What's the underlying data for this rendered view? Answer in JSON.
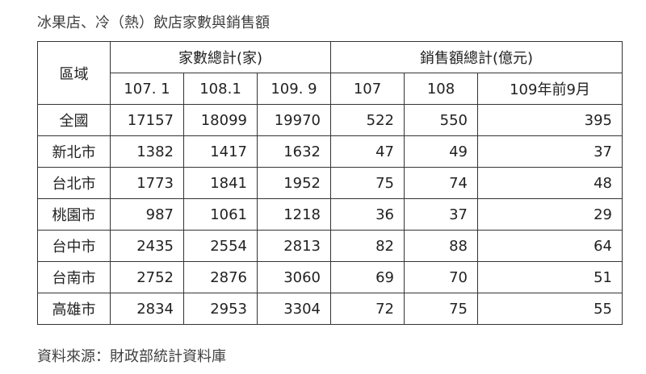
{
  "title": "冰果店、冷（熱）飲店家數與銷售額",
  "source": "資料來源：財政部統計資料庫",
  "table": {
    "region_header": "區域",
    "group_headers": [
      "家數總計(家)",
      "銷售額總計(億元)"
    ],
    "sub_headers": [
      "107. 1",
      "108.1",
      "109. 9",
      "107",
      "108",
      "109年前9月"
    ],
    "rows": [
      {
        "region": "全國",
        "values": [
          "17157",
          "18099",
          "19970",
          "522",
          "550",
          "395"
        ]
      },
      {
        "region": "新北市",
        "values": [
          "1382",
          "1417",
          "1632",
          "47",
          "49",
          "37"
        ]
      },
      {
        "region": "台北市",
        "values": [
          "1773",
          "1841",
          "1952",
          "75",
          "74",
          "48"
        ]
      },
      {
        "region": "桃園市",
        "values": [
          "987",
          "1061",
          "1218",
          "36",
          "37",
          "29"
        ]
      },
      {
        "region": "台中市",
        "values": [
          "2435",
          "2554",
          "2813",
          "82",
          "88",
          "64"
        ]
      },
      {
        "region": "台南市",
        "values": [
          "2752",
          "2876",
          "3060",
          "69",
          "70",
          "51"
        ]
      },
      {
        "region": "高雄市",
        "values": [
          "2834",
          "2953",
          "3304",
          "72",
          "75",
          "55"
        ]
      }
    ]
  }
}
